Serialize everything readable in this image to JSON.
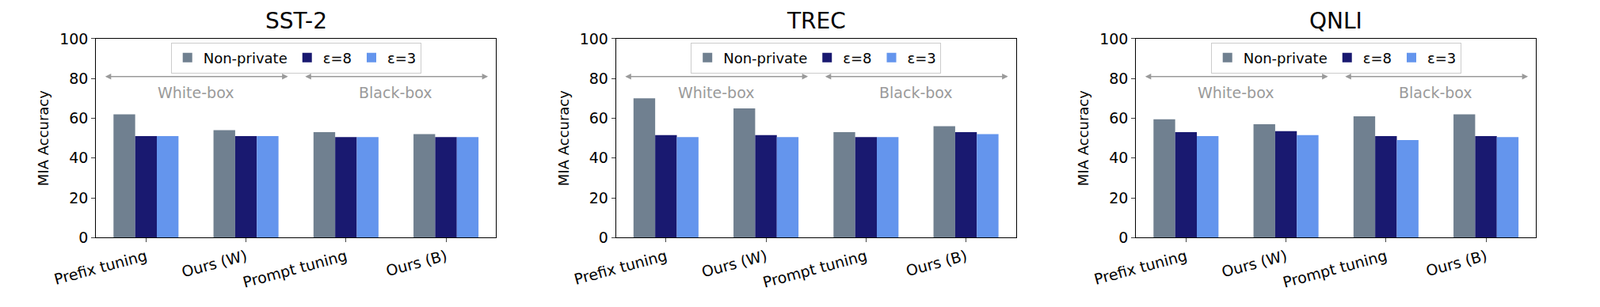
{
  "chart_data": [
    {
      "type": "bar",
      "title": "SST-2",
      "y_label": "MIA Accuracy",
      "categories": [
        "Prefix tuning",
        "Ours (W)",
        "Prompt tuning",
        "Ours (B)"
      ],
      "series": [
        {
          "name": "Non-private",
          "color": "#708090",
          "values": [
            62,
            54,
            53,
            52
          ]
        },
        {
          "name": "ε=8",
          "color": "#191970",
          "values": [
            51,
            51,
            50.5,
            50.5
          ]
        },
        {
          "name": "ε=3",
          "color": "#6495ED",
          "values": [
            51,
            51,
            50.5,
            50.5
          ]
        }
      ],
      "annotations": [
        {
          "text": "White-box",
          "from": "Prefix tuning",
          "to": "Ours (W)"
        },
        {
          "text": "Black-box",
          "from": "Prompt tuning",
          "to": "Ours (B)"
        }
      ],
      "ylim": [
        0,
        100
      ],
      "yticks": [
        0,
        20,
        40,
        60,
        80,
        100
      ],
      "grid": false,
      "legend": "top"
    },
    {
      "type": "bar",
      "title": "TREC",
      "y_label": "MIA Accuracy",
      "categories": [
        "Prefix tuning",
        "Ours (W)",
        "Prompt tuning",
        "Ours (B)"
      ],
      "series": [
        {
          "name": "Non-private",
          "color": "#708090",
          "values": [
            70,
            65,
            53,
            56
          ]
        },
        {
          "name": "ε=8",
          "color": "#191970",
          "values": [
            51.5,
            51.5,
            50.5,
            53
          ]
        },
        {
          "name": "ε=3",
          "color": "#6495ED",
          "values": [
            50.5,
            50.5,
            50.5,
            52
          ]
        }
      ],
      "annotations": [
        {
          "text": "White-box",
          "from": "Prefix tuning",
          "to": "Ours (W)"
        },
        {
          "text": "Black-box",
          "from": "Prompt tuning",
          "to": "Ours (B)"
        }
      ],
      "ylim": [
        0,
        100
      ],
      "yticks": [
        0,
        20,
        40,
        60,
        80,
        100
      ],
      "grid": false,
      "legend": "top"
    },
    {
      "type": "bar",
      "title": "QNLI",
      "y_label": "MIA Accuracy",
      "categories": [
        "Prefix tuning",
        "Ours (W)",
        "Prompt tuning",
        "Ours (B)"
      ],
      "series": [
        {
          "name": "Non-private",
          "color": "#708090",
          "values": [
            59.5,
            57,
            61,
            62
          ]
        },
        {
          "name": "ε=8",
          "color": "#191970",
          "values": [
            53,
            53.5,
            51,
            51
          ]
        },
        {
          "name": "ε=3",
          "color": "#6495ED",
          "values": [
            51,
            51.5,
            49,
            50.5
          ]
        }
      ],
      "annotations": [
        {
          "text": "White-box",
          "from": "Prefix tuning",
          "to": "Ours (W)"
        },
        {
          "text": "Black-box",
          "from": "Prompt tuning",
          "to": "Ours (B)"
        }
      ],
      "ylim": [
        0,
        100
      ],
      "yticks": [
        0,
        20,
        40,
        60,
        80,
        100
      ],
      "grid": false,
      "legend": "top"
    }
  ]
}
